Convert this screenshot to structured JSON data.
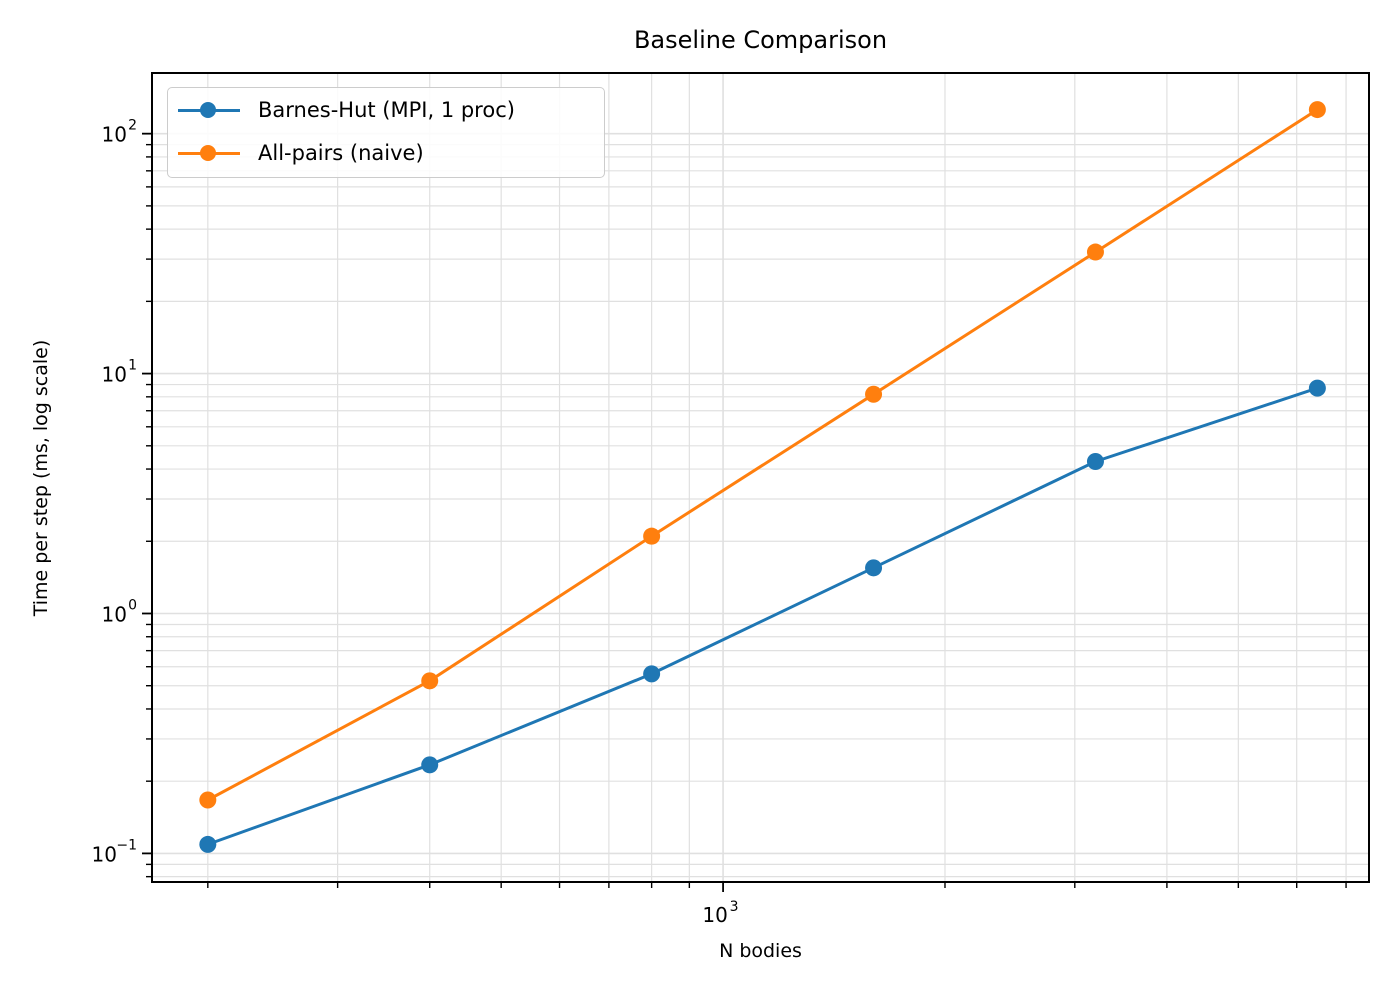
{
  "chart_data": {
    "type": "line",
    "title": "Baseline Comparison",
    "xlabel": "N bodies",
    "ylabel": "Time per step (ms, log scale)",
    "xscale": "log",
    "yscale": "log",
    "x": [
      200,
      400,
      800,
      1600,
      3200,
      6400
    ],
    "series": [
      {
        "name": "Barnes-Hut (MPI, 1 proc)",
        "color": "#1f77b4",
        "marker": "circle",
        "values": [
          0.109,
          0.234,
          0.56,
          1.55,
          4.3,
          8.7
        ]
      },
      {
        "name": "All-pairs (naive)",
        "color": "#ff7f0e",
        "marker": "circle",
        "values": [
          0.167,
          0.524,
          2.1,
          8.2,
          32.1,
          126
        ]
      }
    ],
    "xlim": [
      168,
      7520
    ],
    "ylim": [
      0.076,
      179
    ],
    "xticks": [
      {
        "value": 1000,
        "label": "10^3"
      }
    ],
    "yticks": [
      {
        "value": 0.1,
        "label": "10^-1"
      },
      {
        "value": 1,
        "label": "10^0"
      },
      {
        "value": 10,
        "label": "10^1"
      },
      {
        "value": 100,
        "label": "10^2"
      }
    ],
    "grid": {
      "major": true,
      "minor": true,
      "color": "#e0e0e0"
    },
    "legend": {
      "position": "upper left"
    }
  }
}
